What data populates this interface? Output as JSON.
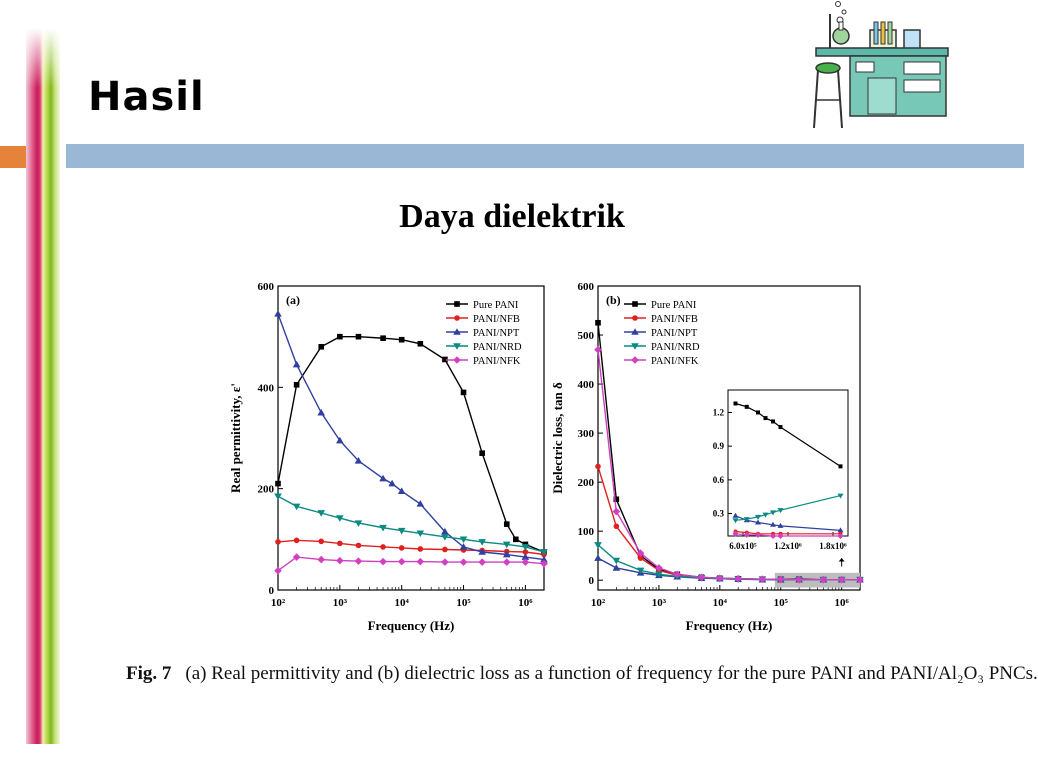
{
  "slide": {
    "title": "Hasil",
    "subtitle": "Daya dielektrik",
    "caption_label": "Fig. 7",
    "caption_text": "(a) Real permittivity and (b) dielectric loss as a function of frequency for the pure PANI and PANI/Al₂O₃ PNCs."
  },
  "chart_data": [
    {
      "type": "line",
      "panel_label": "(a)",
      "xlabel": "Frequency (Hz)",
      "ylabel": "Real permittivity, ε'",
      "x_scale": "log",
      "xlim": [
        100,
        2000000
      ],
      "ylim": [
        0,
        600
      ],
      "yticks": [
        0,
        200,
        400,
        600
      ],
      "xtick_labels": [
        "10²",
        "10³",
        "10⁴",
        "10⁵",
        "10⁶"
      ],
      "legend_position": "top-right",
      "series": [
        {
          "name": "Pure PANI",
          "color": "#000000",
          "marker": "square",
          "x": [
            100,
            200,
            500,
            1000,
            2000,
            5000,
            10000,
            20000,
            50000,
            100000,
            200000,
            500000,
            700000,
            1000000,
            2000000
          ],
          "values": [
            210,
            405,
            480,
            500,
            500,
            497,
            494,
            486,
            455,
            390,
            270,
            130,
            100,
            90,
            75
          ]
        },
        {
          "name": "PANI/NFB",
          "color": "#e02020",
          "marker": "circle",
          "x": [
            100,
            200,
            500,
            1000,
            2000,
            5000,
            10000,
            20000,
            50000,
            100000,
            200000,
            500000,
            1000000,
            2000000
          ],
          "values": [
            95,
            98,
            96,
            92,
            88,
            85,
            83,
            81,
            80,
            79,
            78,
            76,
            75,
            70
          ]
        },
        {
          "name": "PANI/NPT",
          "color": "#3040a0",
          "marker": "triangle-up",
          "x": [
            100,
            200,
            500,
            1000,
            2000,
            5000,
            7000,
            10000,
            20000,
            50000,
            100000,
            200000,
            500000,
            1000000,
            2000000
          ],
          "values": [
            545,
            445,
            350,
            295,
            255,
            220,
            210,
            195,
            170,
            115,
            85,
            75,
            70,
            65,
            60
          ]
        },
        {
          "name": "PANI/NRD",
          "color": "#0a8a80",
          "marker": "triangle-down",
          "x": [
            100,
            200,
            500,
            1000,
            2000,
            5000,
            10000,
            20000,
            50000,
            100000,
            200000,
            500000,
            1000000,
            2000000
          ],
          "values": [
            185,
            165,
            152,
            142,
            132,
            123,
            117,
            112,
            105,
            100,
            95,
            90,
            85,
            75
          ]
        },
        {
          "name": "PANI/NFK",
          "color": "#d040c0",
          "marker": "diamond",
          "x": [
            100,
            200,
            500,
            1000,
            2000,
            5000,
            10000,
            20000,
            50000,
            100000,
            200000,
            500000,
            1000000,
            2000000
          ],
          "values": [
            38,
            65,
            60,
            58,
            57,
            56,
            56,
            56,
            55,
            55,
            55,
            55,
            55,
            52
          ]
        }
      ]
    },
    {
      "type": "line",
      "panel_label": "(b)",
      "xlabel": "Frequency (Hz)",
      "ylabel": "Dielectric loss, tan δ",
      "x_scale": "log",
      "xlim": [
        100,
        2000000
      ],
      "ylim": [
        -20,
        600
      ],
      "yticks": [
        0,
        100,
        200,
        300,
        400,
        500,
        600
      ],
      "xtick_labels": [
        "10²",
        "10³",
        "10⁴",
        "10⁵",
        "10⁶"
      ],
      "legend_position": "top-right",
      "series": [
        {
          "name": "Pure PANI",
          "color": "#000000",
          "marker": "square",
          "x": [
            100,
            200,
            500,
            1000,
            2000,
            5000,
            10000,
            20000,
            50000,
            100000,
            200000,
            500000,
            1000000,
            2000000
          ],
          "values": [
            525,
            165,
            50,
            22,
            12,
            6,
            4,
            3,
            2,
            2,
            2,
            1,
            1,
            1
          ]
        },
        {
          "name": "PANI/NFB",
          "color": "#e02020",
          "marker": "circle",
          "x": [
            100,
            200,
            500,
            1000,
            2000,
            5000,
            10000,
            20000,
            50000,
            100000,
            200000,
            500000,
            1000000,
            2000000
          ],
          "values": [
            232,
            110,
            45,
            20,
            10,
            5,
            3,
            2,
            2,
            1,
            1,
            1,
            1,
            1
          ]
        },
        {
          "name": "PANI/NPT",
          "color": "#3040a0",
          "marker": "triangle-up",
          "x": [
            100,
            200,
            500,
            1000,
            2000,
            5000,
            10000,
            20000,
            50000,
            100000,
            200000,
            500000,
            1000000,
            2000000
          ],
          "values": [
            45,
            25,
            15,
            10,
            7,
            4,
            3,
            2,
            1,
            1,
            1,
            1,
            1,
            1
          ]
        },
        {
          "name": "PANI/NRD",
          "color": "#0a8a80",
          "marker": "triangle-down",
          "x": [
            100,
            200,
            500,
            1000,
            2000,
            5000,
            10000,
            20000,
            50000,
            100000,
            200000,
            500000,
            1000000,
            2000000
          ],
          "values": [
            72,
            40,
            20,
            12,
            8,
            5,
            3,
            2,
            2,
            1,
            1,
            1,
            1,
            1
          ]
        },
        {
          "name": "PANI/NFK",
          "color": "#d040c0",
          "marker": "diamond",
          "x": [
            100,
            200,
            500,
            1000,
            2000,
            5000,
            10000,
            20000,
            50000,
            100000,
            200000,
            500000,
            1000000,
            2000000
          ],
          "values": [
            470,
            140,
            55,
            25,
            12,
            6,
            4,
            3,
            2,
            2,
            1,
            1,
            1,
            1
          ]
        }
      ],
      "inset": {
        "xlim": [
          400000,
          2000000
        ],
        "ylim": [
          0.1,
          1.4
        ],
        "yticks": [
          0.3,
          0.6,
          0.9,
          1.2
        ],
        "ytick_labels": [
          "0.3",
          "0.6",
          "0.9",
          "1.2"
        ],
        "xticks": [
          600000,
          1200000,
          1800000
        ],
        "xtick_labels": [
          "6.0x10⁵",
          "1.2x10⁶",
          "1.8x10⁶"
        ],
        "series": [
          {
            "name": "Pure PANI",
            "color": "#000000",
            "marker": "square",
            "x": [
              500000,
              650000,
              800000,
              900000,
              1000000,
              1100000,
              1900000
            ],
            "values": [
              1.28,
              1.25,
              1.2,
              1.15,
              1.12,
              1.07,
              0.72
            ]
          },
          {
            "name": "PANI/NPT",
            "color": "#3040a0",
            "marker": "triangle-up",
            "x": [
              500000,
              650000,
              800000,
              1000000,
              1100000,
              1900000
            ],
            "values": [
              0.28,
              0.24,
              0.22,
              0.2,
              0.19,
              0.15
            ]
          },
          {
            "name": "PANI/NRD",
            "color": "#0a8a80",
            "marker": "triangle-down",
            "x": [
              500000,
              650000,
              800000,
              900000,
              1000000,
              1100000,
              1900000
            ],
            "values": [
              0.24,
              0.25,
              0.27,
              0.29,
              0.31,
              0.33,
              0.46
            ]
          },
          {
            "name": "PANI/NFB",
            "color": "#e02020",
            "marker": "circle",
            "x": [
              500000,
              650000,
              800000,
              1000000,
              1100000,
              1900000
            ],
            "values": [
              0.14,
              0.13,
              0.12,
              0.12,
              0.12,
              0.12
            ]
          },
          {
            "name": "PANI/NFK",
            "color": "#d040c0",
            "marker": "diamond",
            "x": [
              500000,
              650000,
              800000,
              1000000,
              1100000,
              1900000
            ],
            "values": [
              0.12,
              0.11,
              0.11,
              0.1,
              0.1,
              0.1
            ]
          }
        ]
      }
    }
  ]
}
